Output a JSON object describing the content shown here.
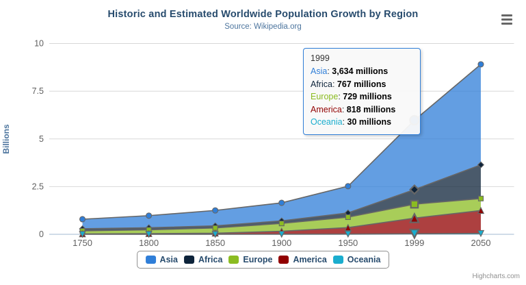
{
  "chart": {
    "title": "Historic and Estimated Worldwide Population Growth by Region",
    "subtitle": "Source: Wikipedia.org",
    "yaxis_title": "Billions",
    "credits": "Highcharts.com",
    "context_menu_icon": "hamburger-menu-icon",
    "colors": {
      "title": "#274b6d",
      "subtitle": "#4d759e",
      "axis_label": "#606060",
      "axis_title": "#4d759e",
      "axis_line": "#C0D0E0",
      "gridline": "#D8D8D8",
      "series_line": "#666666",
      "legend_border": "#909090",
      "legend_text": "#274b6d",
      "tooltip_border": "#2f7ed8"
    }
  },
  "chart_data": {
    "type": "area",
    "stacking": "normal",
    "title": "Historic and Estimated Worldwide Population Growth by Region",
    "subtitle": "Source: Wikipedia.org",
    "xlabel": "",
    "ylabel": "Billions",
    "categories": [
      "1750",
      "1800",
      "1850",
      "1900",
      "1950",
      "1999",
      "2050"
    ],
    "values_unit": "millions",
    "yticks": [
      "0",
      "2.5",
      "5",
      "7.5",
      "10"
    ],
    "ytick_values": [
      0,
      2.5,
      5,
      7.5,
      10
    ],
    "ylim": [
      0,
      10
    ],
    "grid": "horizontal",
    "legend_position": "bottom-center",
    "hover_category_index": 5,
    "series": [
      {
        "name": "Asia",
        "color": "#2f7ed8",
        "marker": "circle",
        "values": [
          502,
          635,
          809,
          947,
          1402,
          3634,
          5268
        ]
      },
      {
        "name": "Africa",
        "color": "#0d233a",
        "marker": "diamond",
        "values": [
          106,
          107,
          111,
          133,
          221,
          767,
          1766
        ]
      },
      {
        "name": "Europe",
        "color": "#8bbc21",
        "marker": "square",
        "values": [
          163,
          203,
          276,
          408,
          547,
          729,
          628
        ]
      },
      {
        "name": "America",
        "color": "#910000",
        "marker": "triangle",
        "values": [
          18,
          31,
          54,
          156,
          339,
          818,
          1201
        ]
      },
      {
        "name": "Oceania",
        "color": "#1aadce",
        "marker": "triangle-down",
        "values": [
          2,
          2,
          2,
          6,
          13,
          30,
          46
        ]
      }
    ]
  },
  "tooltip": {
    "header": "1999",
    "rows": [
      {
        "name": "Asia",
        "color": "#2f7ed8",
        "value": "3,634 millions"
      },
      {
        "name": "Africa",
        "color": "#0d233a",
        "value": "767 millions"
      },
      {
        "name": "Europe",
        "color": "#8bbc21",
        "value": "729 millions"
      },
      {
        "name": "America",
        "color": "#910000",
        "value": "818 millions"
      },
      {
        "name": "Oceania",
        "color": "#1aadce",
        "value": "30 millions"
      }
    ]
  }
}
